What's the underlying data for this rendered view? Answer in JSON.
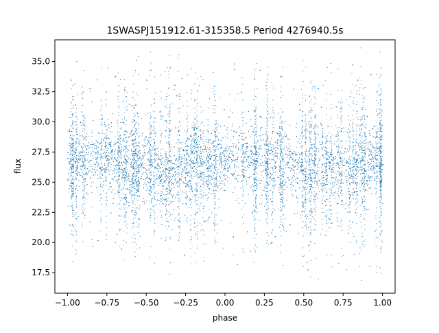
{
  "chart_data": {
    "type": "scatter",
    "title": "1SWASPJ151912.61-315358.5 Period 4276940.5s",
    "xlabel": "phase",
    "ylabel": "flux",
    "xlim": [
      -1.08,
      1.08
    ],
    "ylim": [
      15.8,
      36.8
    ],
    "xticks": [
      "−1.00",
      "−0.75",
      "−0.50",
      "−0.25",
      "0.00",
      "0.25",
      "0.50",
      "0.75",
      "1.00"
    ],
    "xtick_values": [
      -1.0,
      -0.75,
      -0.5,
      -0.25,
      0.0,
      0.25,
      0.5,
      0.75,
      1.0
    ],
    "yticks": [
      "17.5",
      "20.0",
      "22.5",
      "25.0",
      "27.5",
      "30.0",
      "32.5",
      "35.0"
    ],
    "ytick_values": [
      17.5,
      20.0,
      22.5,
      25.0,
      27.5,
      30.0,
      32.5,
      35.0
    ],
    "grid": false,
    "legend": "none",
    "marker_color": "#1f77b4",
    "series": [
      {
        "phase_range": [
          -1.0,
          1.0
        ],
        "flux_core_range": [
          23.5,
          29.5
        ],
        "flux_full_range": [
          16.7,
          36.2
        ],
        "center_flux": 26.5,
        "points": [
          [
            -1.0,
            27.5
          ],
          [
            -0.98,
            33.5
          ],
          [
            -0.97,
            21.5
          ],
          [
            -0.92,
            30.0
          ],
          [
            -0.86,
            32.8
          ],
          [
            -0.81,
            20.2
          ],
          [
            -0.75,
            27.0
          ],
          [
            -0.7,
            33.8
          ],
          [
            -0.66,
            19.5
          ],
          [
            -0.61,
            31.5
          ],
          [
            -0.55,
            22.0
          ],
          [
            -0.5,
            33.5
          ],
          [
            -0.45,
            21.0
          ],
          [
            -0.4,
            30.5
          ],
          [
            -0.31,
            32.2
          ],
          [
            -0.26,
            19.0
          ],
          [
            -0.2,
            29.5
          ],
          [
            -0.13,
            21.8
          ],
          [
            -0.07,
            33.0
          ],
          [
            0.0,
            26.5
          ],
          [
            0.05,
            20.5
          ],
          [
            0.1,
            32.5
          ],
          [
            0.17,
            22.5
          ],
          [
            0.22,
            30.5
          ],
          [
            0.29,
            20.0
          ],
          [
            0.35,
            33.8
          ],
          [
            0.41,
            21.5
          ],
          [
            0.47,
            31.5
          ],
          [
            0.53,
            19.8
          ],
          [
            0.59,
            32.8
          ],
          [
            0.66,
            22.0
          ],
          [
            0.71,
            29.0
          ],
          [
            0.78,
            20.8
          ],
          [
            0.84,
            33.5
          ],
          [
            0.9,
            30.5
          ],
          [
            0.95,
            21.0
          ],
          [
            1.0,
            26.5
          ]
        ]
      }
    ]
  }
}
